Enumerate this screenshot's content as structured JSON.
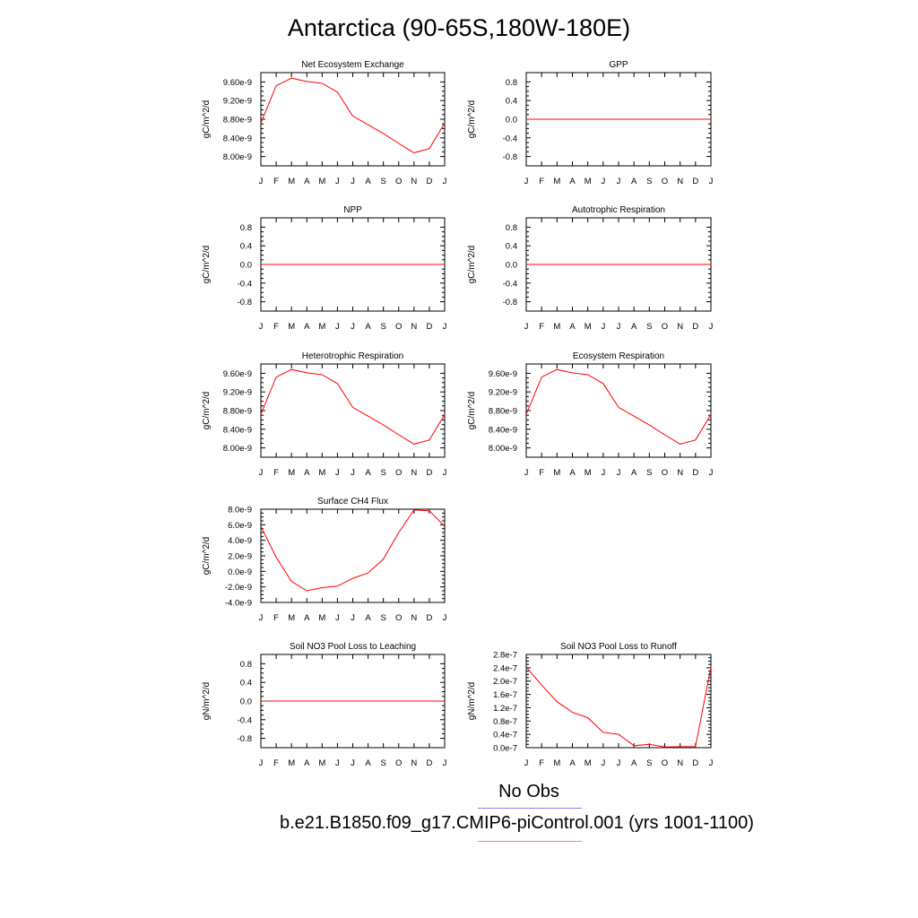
{
  "figure": {
    "title": "Antarctica (90-65S,180W-180E)",
    "months": [
      "J",
      "F",
      "M",
      "A",
      "M",
      "J",
      "J",
      "A",
      "S",
      "O",
      "N",
      "D",
      "J"
    ],
    "legend": [
      {
        "label": "No Obs",
        "color": "#8080ff"
      },
      {
        "label": "b.e21.B1850.f09_g17.CMIP6-piControl.001 (yrs 1001-1100)",
        "color": "#ff8080"
      }
    ],
    "line_color": "#ff0000"
  },
  "chart_data": [
    {
      "type": "line",
      "title": "Net Ecosystem Exchange",
      "ylabel": "gC/m^2/d",
      "ylim": [
        7.8e-09,
        9.8e-09
      ],
      "yticks": [
        8e-09,
        8.4e-09,
        8.8e-09,
        9.2e-09,
        9.6e-09
      ],
      "yticklabels": [
        "8.00e-9",
        "8.40e-9",
        "8.80e-9",
        "9.20e-9",
        "9.60e-9"
      ],
      "values": [
        8.72e-09,
        9.52e-09,
        9.68e-09,
        9.61e-09,
        9.57e-09,
        9.38e-09,
        8.87e-09,
        8.68e-09,
        8.49e-09,
        8.28e-09,
        8.08e-09,
        8.17e-09,
        8.72e-09
      ]
    },
    {
      "type": "line",
      "title": "GPP",
      "ylabel": "gC/m^2/d",
      "ylim": [
        -1,
        1
      ],
      "yticks": [
        -0.8,
        -0.4,
        0,
        0.4,
        0.8
      ],
      "yticklabels": [
        "-0.8",
        "-0.4",
        "0.0",
        "0.4",
        "0.8"
      ],
      "values": [
        0,
        0,
        0,
        0,
        0,
        0,
        0,
        0,
        0,
        0,
        0,
        0,
        0
      ]
    },
    {
      "type": "line",
      "title": "NPP",
      "ylabel": "gC/m^2/d",
      "ylim": [
        -1,
        1
      ],
      "yticks": [
        -0.8,
        -0.4,
        0,
        0.4,
        0.8
      ],
      "yticklabels": [
        "-0.8",
        "-0.4",
        "0.0",
        "0.4",
        "0.8"
      ],
      "values": [
        0,
        0,
        0,
        0,
        0,
        0,
        0,
        0,
        0,
        0,
        0,
        0,
        0
      ]
    },
    {
      "type": "line",
      "title": "Autotrophic Respiration",
      "ylabel": "gC/m^2/d",
      "ylim": [
        -1,
        1
      ],
      "yticks": [
        -0.8,
        -0.4,
        0,
        0.4,
        0.8
      ],
      "yticklabels": [
        "-0.8",
        "-0.4",
        "0.0",
        "0.4",
        "0.8"
      ],
      "values": [
        0,
        0,
        0,
        0,
        0,
        0,
        0,
        0,
        0,
        0,
        0,
        0,
        0
      ]
    },
    {
      "type": "line",
      "title": "Heterotrophic Respiration",
      "ylabel": "gC/m^2/d",
      "ylim": [
        7.8e-09,
        9.8e-09
      ],
      "yticks": [
        8e-09,
        8.4e-09,
        8.8e-09,
        9.2e-09,
        9.6e-09
      ],
      "yticklabels": [
        "8.00e-9",
        "8.40e-9",
        "8.80e-9",
        "9.20e-9",
        "9.60e-9"
      ],
      "values": [
        8.72e-09,
        9.52e-09,
        9.68e-09,
        9.61e-09,
        9.57e-09,
        9.38e-09,
        8.87e-09,
        8.68e-09,
        8.49e-09,
        8.28e-09,
        8.08e-09,
        8.17e-09,
        8.72e-09
      ]
    },
    {
      "type": "line",
      "title": "Ecosystem Respiration",
      "ylabel": "gC/m^2/d",
      "ylim": [
        7.8e-09,
        9.8e-09
      ],
      "yticks": [
        8e-09,
        8.4e-09,
        8.8e-09,
        9.2e-09,
        9.6e-09
      ],
      "yticklabels": [
        "8.00e-9",
        "8.40e-9",
        "8.80e-9",
        "9.20e-9",
        "9.60e-9"
      ],
      "values": [
        8.72e-09,
        9.52e-09,
        9.68e-09,
        9.61e-09,
        9.57e-09,
        9.38e-09,
        8.87e-09,
        8.68e-09,
        8.49e-09,
        8.28e-09,
        8.08e-09,
        8.17e-09,
        8.72e-09
      ]
    },
    {
      "type": "line",
      "title": "Surface CH4 Flux",
      "ylabel": "gC/m^2/d",
      "ylim": [
        -4e-09,
        8e-09
      ],
      "yticks": [
        -4e-09,
        -2e-09,
        0,
        2e-09,
        4e-09,
        6e-09,
        8e-09
      ],
      "yticklabels": [
        "-4.0e-9",
        "-2.0e-9",
        "0.0e-9",
        "2.0e-9",
        "4.0e-9",
        "6.0e-9",
        "8.0e-9"
      ],
      "values": [
        5.8e-09,
        1.8e-09,
        -1.3e-09,
        -2.5e-09,
        -2.1e-09,
        -1.9e-09,
        -9e-10,
        -2e-10,
        1.6e-09,
        5e-09,
        7.9e-09,
        7.8e-09,
        5.8e-09
      ]
    },
    {
      "type": "line",
      "title": "Soil NO3 Pool Loss to Leaching",
      "ylabel": "gN/m^2/d",
      "ylim": [
        -1,
        1
      ],
      "yticks": [
        -0.8,
        -0.4,
        0,
        0.4,
        0.8
      ],
      "yticklabels": [
        "-0.8",
        "-0.4",
        "0.0",
        "0.4",
        "0.8"
      ],
      "values": [
        0,
        0,
        0,
        0,
        0,
        0,
        0,
        0,
        0,
        0,
        0,
        0,
        0
      ]
    },
    {
      "type": "line",
      "title": "Soil NO3 Pool Loss to Runoff",
      "ylabel": "gN/m^2/d",
      "ylim": [
        0,
        2.8e-07
      ],
      "yticks": [
        0,
        4e-08,
        8e-08,
        1.2e-07,
        1.6e-07,
        2e-07,
        2.4e-07,
        2.8e-07
      ],
      "yticklabels": [
        "0.0e-7",
        "0.4e-7",
        "0.8e-7",
        "1.2e-7",
        "1.6e-7",
        "2.0e-7",
        "2.4e-7",
        "2.8e-7"
      ],
      "values": [
        2.42e-07,
        1.88e-07,
        1.38e-07,
        1.06e-07,
        9e-08,
        4.6e-08,
        4e-08,
        6e-09,
        1e-08,
        2e-09,
        3e-09,
        3e-09,
        2.42e-07
      ]
    }
  ]
}
